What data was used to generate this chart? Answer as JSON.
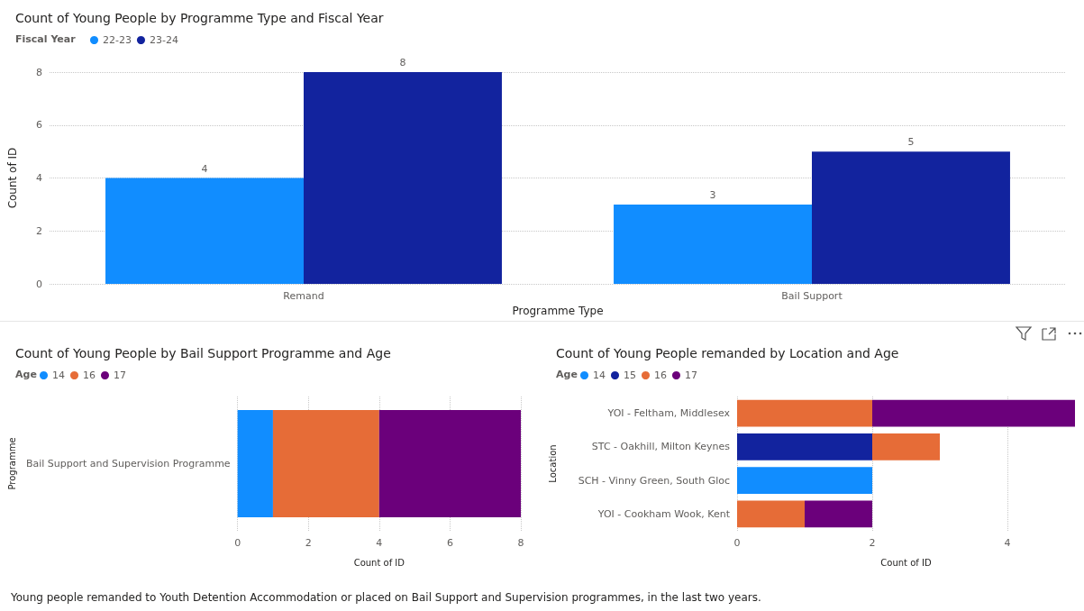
{
  "chart_data": [
    {
      "type": "bar",
      "title": "Count of Young People by Programme Type and Fiscal Year",
      "legend_title": "Fiscal Year",
      "xlabel": "Programme Type",
      "ylabel": "Count of ID",
      "categories": [
        "Remand",
        "Bail Support"
      ],
      "series": [
        {
          "name": "22-23",
          "color": "#118dff",
          "values": [
            4,
            3
          ]
        },
        {
          "name": "23-24",
          "color": "#12239e",
          "values": [
            8,
            5
          ]
        }
      ],
      "ylim": [
        0,
        8
      ],
      "yticks": [
        0,
        2,
        4,
        6,
        8
      ],
      "grid": "y",
      "legend": "top left",
      "data_labels": true
    },
    {
      "type": "bar",
      "orientation": "horizontal",
      "stacked": true,
      "title": "Count of Young People by Bail Support Programme and Age",
      "legend_title": "Age",
      "xlabel": "Count of ID",
      "ylabel": "Programme",
      "categories": [
        "Bail Support and Supervision Programme"
      ],
      "series": [
        {
          "name": "14",
          "color": "#118dff",
          "values": [
            1
          ]
        },
        {
          "name": "16",
          "color": "#e66c37",
          "values": [
            3
          ]
        },
        {
          "name": "17",
          "color": "#6b007b",
          "values": [
            4
          ]
        }
      ],
      "xlim": [
        0,
        8
      ],
      "xticks": [
        0,
        2,
        4,
        6,
        8
      ],
      "grid": "x",
      "legend": "top left"
    },
    {
      "type": "bar",
      "orientation": "horizontal",
      "stacked": true,
      "title": "Count of Young People remanded by Location and Age",
      "legend_title": "Age",
      "xlabel": "Count of ID",
      "ylabel": "Location",
      "categories": [
        "YOI - Feltham, Middlesex",
        "STC - Oakhill, Milton Keynes",
        "SCH - Vinny Green, South Gloc",
        "YOI - Cookham Wook, Kent"
      ],
      "series": [
        {
          "name": "14",
          "color": "#118dff",
          "values": [
            null,
            null,
            2,
            null
          ]
        },
        {
          "name": "15",
          "color": "#12239e",
          "values": [
            null,
            2,
            null,
            null
          ]
        },
        {
          "name": "16",
          "color": "#e66c37",
          "values": [
            2,
            1,
            null,
            1
          ]
        },
        {
          "name": "17",
          "color": "#6b007b",
          "values": [
            3,
            null,
            null,
            1
          ]
        }
      ],
      "xlim": [
        0,
        5
      ],
      "xticks": [
        0,
        2,
        4
      ],
      "grid": "x",
      "legend": "top left"
    },
    {
      "type": "other",
      "annotations": [
        "Young people remanded to Youth Detention Accommodation or placed on Bail Support and Supervision programmes, in the last two years."
      ]
    }
  ]
}
